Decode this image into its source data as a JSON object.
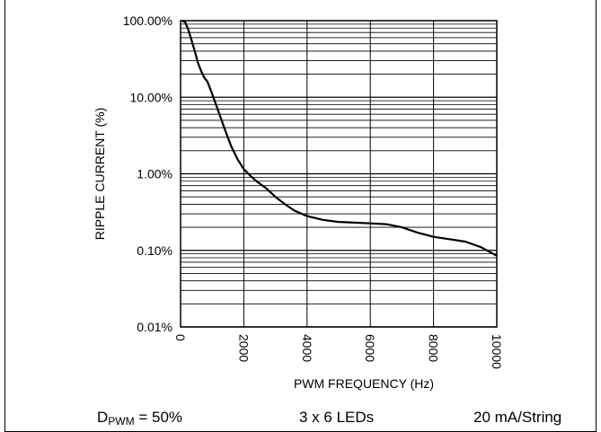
{
  "chart_data": {
    "type": "line",
    "title": "",
    "xlabel": "PWM FREQUENCY (Hz)",
    "ylabel": "RIPPLE CURRENT (%)",
    "xlim": [
      0,
      10000
    ],
    "ylim": [
      0.01,
      100
    ],
    "yscale": "log",
    "grid": true,
    "x_ticks": [
      0,
      2000,
      4000,
      6000,
      8000,
      10000
    ],
    "x_tick_labels": [
      "0",
      "2000",
      "4000",
      "6000",
      "8000",
      "10000"
    ],
    "y_ticks": [
      0.01,
      0.1,
      1,
      10,
      100
    ],
    "y_tick_labels": [
      "0.01%",
      "0.10%",
      "1.00%",
      "10.00%",
      "100.00%"
    ],
    "series": [
      {
        "x": [
          50,
          150,
          250,
          350,
          450,
          550,
          650,
          750,
          850,
          1000,
          1200,
          1400,
          1600,
          1800,
          2000,
          2200,
          2400,
          2700,
          3000,
          3300,
          3600,
          4000,
          4500,
          5000,
          5500,
          6000,
          6500,
          7000,
          7500,
          8000,
          8500,
          9000,
          9500,
          10000
        ],
        "y": [
          100,
          95,
          75,
          55,
          40,
          28,
          22,
          18,
          16,
          11,
          6.5,
          3.8,
          2.3,
          1.55,
          1.15,
          0.95,
          0.8,
          0.65,
          0.5,
          0.4,
          0.33,
          0.28,
          0.25,
          0.235,
          0.23,
          0.225,
          0.22,
          0.2,
          0.17,
          0.15,
          0.14,
          0.13,
          0.11,
          0.085
        ]
      }
    ]
  },
  "footer": {
    "duty_prefix": "D",
    "duty_sub": "PWM",
    "duty_value": " = 50%",
    "leds": "3 x 6 LEDs",
    "current": "20 mA/String"
  }
}
